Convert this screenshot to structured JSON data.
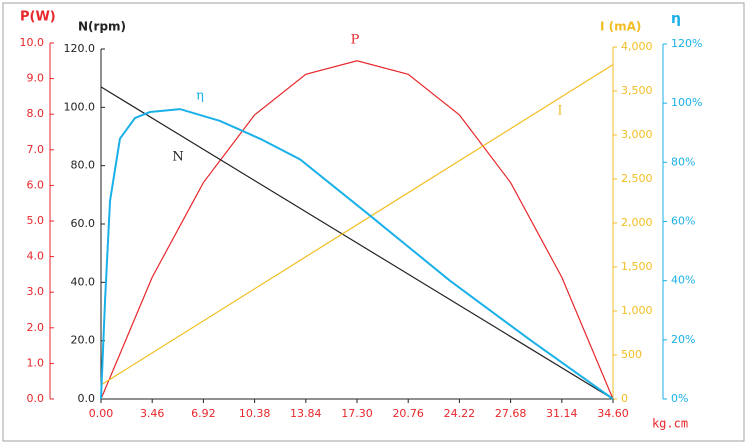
{
  "chart_data": {
    "type": "line",
    "xlabel": "kg.cm",
    "xlim": [
      0,
      34.6
    ],
    "xticks": [
      {
        "value": 0,
        "label": "0.00"
      },
      3.46,
      6.92,
      10.38,
      13.84,
      {
        "value": 17.3,
        "label": "17.30"
      },
      20.76,
      24.22,
      27.68,
      31.14,
      {
        "value": 34.6,
        "label": "34.60"
      }
    ],
    "ylabel": "P(W)",
    "ycolor": "#e8272b",
    "ylim": [
      0,
      10
    ],
    "yticks": [
      {
        "value": 0,
        "label": "0.0"
      },
      {
        "value": 1,
        "label": "1.0"
      },
      {
        "value": 2,
        "label": "2.0"
      },
      {
        "value": 3,
        "label": "3.0"
      },
      {
        "value": 4,
        "label": "4.0"
      },
      {
        "value": 5,
        "label": "5.0"
      },
      {
        "value": 6,
        "label": "6.0"
      },
      {
        "value": 7,
        "label": "7.0"
      },
      {
        "value": 8,
        "label": "8.0"
      },
      {
        "value": 9,
        "label": "9.0"
      },
      {
        "value": 10,
        "label": "10.0"
      }
    ],
    "y2label": "N(rpm)",
    "y2color": "#222222",
    "y2lim": [
      0,
      120
    ],
    "y2ticks": [
      {
        "value": 0,
        "label": "0.0"
      },
      {
        "value": 20,
        "label": "20.0"
      },
      {
        "value": 40,
        "label": "40.0"
      },
      {
        "value": 60,
        "label": "60.0"
      },
      {
        "value": 80,
        "label": "80.0"
      },
      {
        "value": 100,
        "label": "100.0"
      },
      {
        "value": 120,
        "label": "120.0"
      }
    ],
    "y3label": "I (mA)",
    "y3color": "#f2bd22",
    "y3lim": [
      0,
      4000
    ],
    "y3ticks": [
      0,
      500,
      {
        "value": 1000,
        "label": "1,000"
      },
      {
        "value": 1500,
        "label": "1,500"
      },
      {
        "value": 2000,
        "label": "2,000"
      },
      {
        "value": 2500,
        "label": "2,500"
      },
      {
        "value": 3000,
        "label": "3,000"
      },
      {
        "value": 3500,
        "label": "3,500"
      },
      {
        "value": 4000,
        "label": "4,000"
      }
    ],
    "y4label": "η",
    "y4color": "#1ab0e8",
    "y4lim": [
      0,
      120
    ],
    "y4ticks": [
      {
        "value": 0,
        "label": "0%"
      },
      {
        "value": 20,
        "label": "20%"
      },
      {
        "value": 40,
        "label": "40%"
      },
      {
        "value": 60,
        "label": "60%"
      },
      {
        "value": 80,
        "label": "80%"
      },
      {
        "value": 100,
        "label": "100%"
      },
      {
        "value": 120,
        "label": "120%"
      }
    ],
    "series": [
      {
        "name": "P",
        "color": "#e8272b",
        "axis": "y",
        "x": [
          0,
          3.46,
          6.92,
          10.38,
          13.84,
          17.3,
          20.76,
          24.22,
          27.68,
          31.14,
          34.6
        ],
        "values": [
          0,
          3.42,
          6.08,
          7.98,
          9.12,
          9.5,
          9.12,
          7.98,
          6.08,
          3.42,
          0
        ]
      },
      {
        "name": "N",
        "color": "#222222",
        "axis": "y2",
        "x": [
          0,
          34.6
        ],
        "values": [
          107,
          0
        ]
      },
      {
        "name": "I",
        "color": "#f2bd22",
        "axis": "y3",
        "x": [
          0,
          34.6
        ],
        "values": [
          160,
          3800
        ]
      },
      {
        "name": "η",
        "color": "#1ab0e8",
        "axis": "y4",
        "x": [
          0,
          0.27,
          0.61,
          1.28,
          2.3,
          3.31,
          5.34,
          8.04,
          10.74,
          13.45,
          18.18,
          23.58,
          28.99,
          34.6
        ],
        "values": [
          0,
          33,
          67,
          88,
          95,
          97,
          98,
          94,
          88,
          81,
          62,
          40,
          20,
          0
        ]
      }
    ]
  }
}
